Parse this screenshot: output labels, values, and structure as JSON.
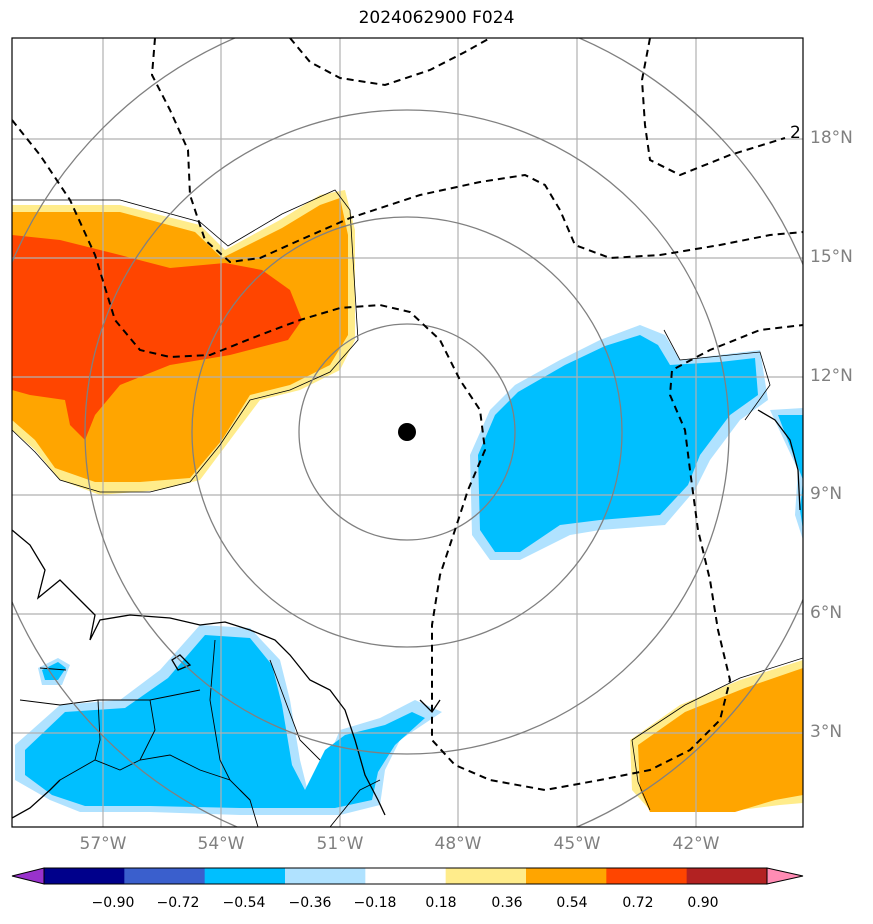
{
  "title": "2024062900 F024",
  "lat_labels": [
    "18°N",
    "15°N",
    "12°N",
    "9°N",
    "6°N",
    "3°N"
  ],
  "lon_labels": [
    "57°W",
    "54°W",
    "51°W",
    "48°W",
    "45°W",
    "42°W"
  ],
  "contour_label": "2",
  "colorbar": {
    "ticks": [
      "−0.90",
      "−0.72",
      "−0.54",
      "−0.36",
      "−0.18",
      "0.18",
      "0.36",
      "0.54",
      "0.72",
      "0.90"
    ],
    "colors": [
      "#9932cc",
      "#00008b",
      "#3a5fcd",
      "#00bfff",
      "#b0e2ff",
      "#ffffff",
      "#ffec8b",
      "#ffa500",
      "#ff4500",
      "#b22222",
      "#ff8cb4"
    ]
  },
  "colors": {
    "orange": "#ffa500",
    "red_orange": "#ff4500",
    "light_yellow": "#ffec8b",
    "deep_sky_blue": "#00bfff",
    "light_blue": "#b0e2ff",
    "grid": "#b0b0b0",
    "range_ring": "#808080"
  },
  "center_marker": "storm-center"
}
